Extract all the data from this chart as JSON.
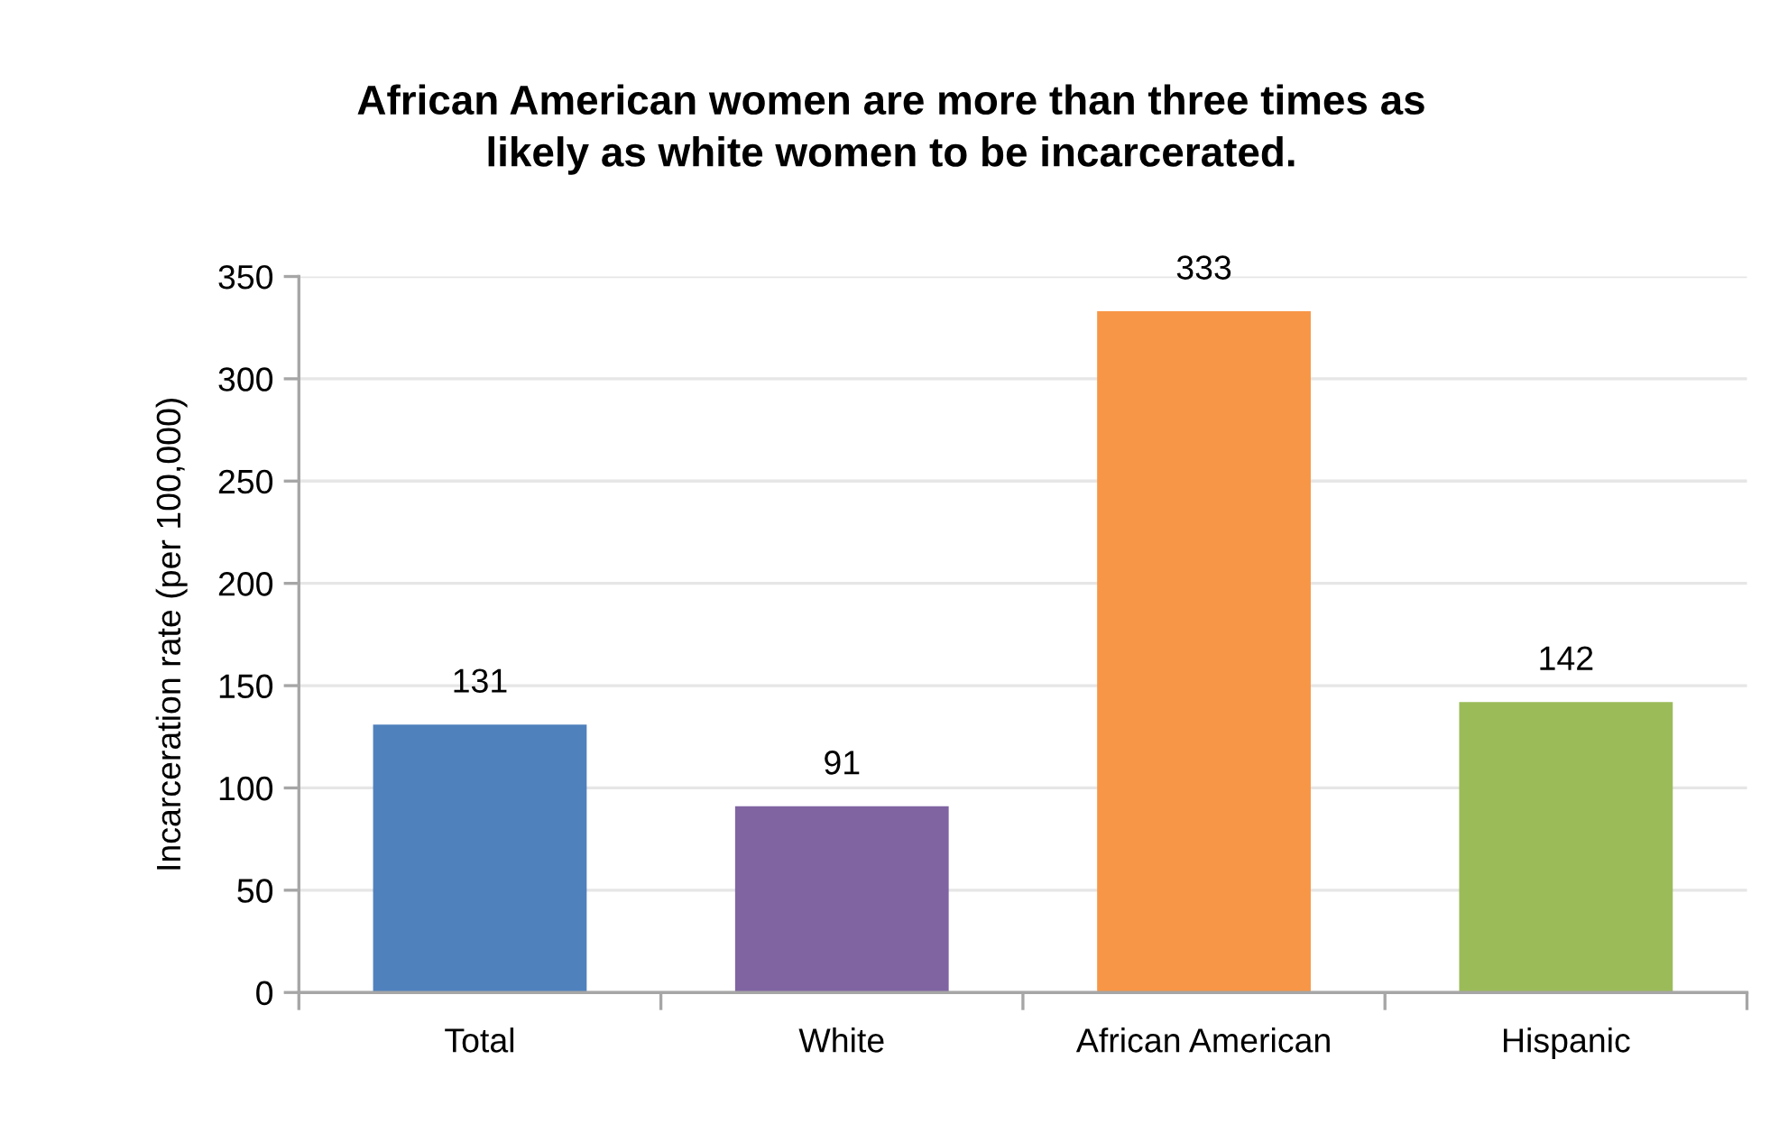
{
  "chart_data": {
    "type": "bar",
    "title": "African American women are more than three times as\nlikely as white women to be incarcerated.",
    "ylabel": "Incarceration rate (per 100,000)",
    "categories": [
      "Total",
      "White",
      "African American",
      "Hispanic"
    ],
    "values": [
      131,
      91,
      333,
      142
    ],
    "colors": [
      "#4f81bd",
      "#8064a2",
      "#f79646",
      "#9bbb59"
    ],
    "ylim": [
      0,
      350
    ],
    "yticks": [
      0,
      50,
      100,
      150,
      200,
      250,
      300,
      350
    ],
    "grid": "y",
    "data_labels": true
  }
}
